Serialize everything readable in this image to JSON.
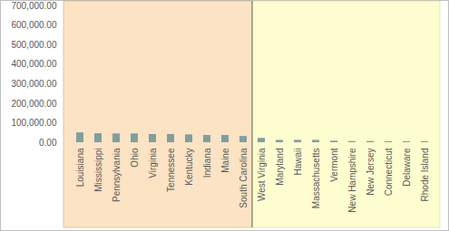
{
  "chart_data": {
    "type": "bar",
    "categories": [
      "Louisiana",
      "Mississippi",
      "Pennsylvania",
      "Ohio",
      "Virginia",
      "Tennessee",
      "Kentucky",
      "Indiana",
      "Maine",
      "South Carolina",
      "West Virginia",
      "Maryland",
      "Hawaii",
      "Massachusetts",
      "Vermont",
      "New Hampshire",
      "New Jersey",
      "Connecticut",
      "Delaware",
      "Rhode Island"
    ],
    "values": [
      50000,
      46000,
      45000,
      45000,
      42000,
      42000,
      40000,
      37000,
      37000,
      32000,
      22000,
      12000,
      12000,
      12000,
      8000,
      6000,
      6000,
      5000,
      5000,
      5000
    ],
    "color": "#7f9f9f",
    "ylim": [
      0,
      700000
    ],
    "yticks": [
      {
        "value": 0,
        "label": "0.00"
      },
      {
        "value": 100000,
        "label": "100,000.00"
      },
      {
        "value": 200000,
        "label": "200,000.00"
      },
      {
        "value": 300000,
        "label": "300,000.00"
      },
      {
        "value": 400000,
        "label": "400,000.00"
      },
      {
        "value": 500000,
        "label": "500,000.00"
      },
      {
        "value": 600000,
        "label": "600,000.00"
      },
      {
        "value": 700000,
        "label": "700,000.00"
      }
    ],
    "grid": false
  }
}
